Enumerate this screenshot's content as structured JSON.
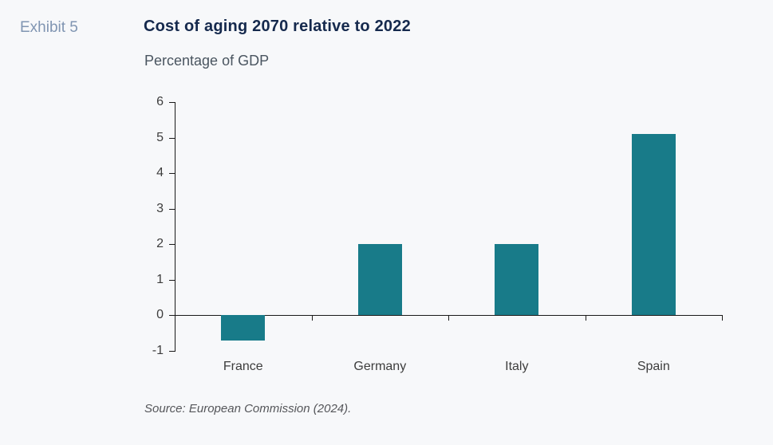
{
  "page": {
    "background_color": "#f7f8fa"
  },
  "header": {
    "exhibit_label": "Exhibit 5",
    "title": "Cost of aging 2070 relative to 2022",
    "subtitle": "Percentage of GDP"
  },
  "footer": {
    "source": "Source: European Commission (2024)."
  },
  "colors": {
    "bar": "#187b89",
    "title": "#15294d",
    "exhibit_label": "#8095b2",
    "axis": "#1a1a1a",
    "background": "#f7f8fa"
  },
  "chart_data": {
    "type": "bar",
    "title": "Cost of aging 2070 relative to 2022",
    "subtitle": "Percentage of GDP",
    "categories": [
      "France",
      "Germany",
      "Italy",
      "Spain"
    ],
    "values": [
      -0.7,
      2.0,
      2.0,
      5.1
    ],
    "xlabel": "",
    "ylabel": "Percentage of GDP",
    "ylim": [
      -1,
      6
    ],
    "ytick_step": 1,
    "yticks": [
      -1,
      0,
      1,
      2,
      3,
      4,
      5,
      6
    ],
    "grid": false,
    "legend": false,
    "bar_color": "#187b89",
    "axis_color": "#1a1a1a",
    "source": "Source: European Commission (2024)."
  }
}
